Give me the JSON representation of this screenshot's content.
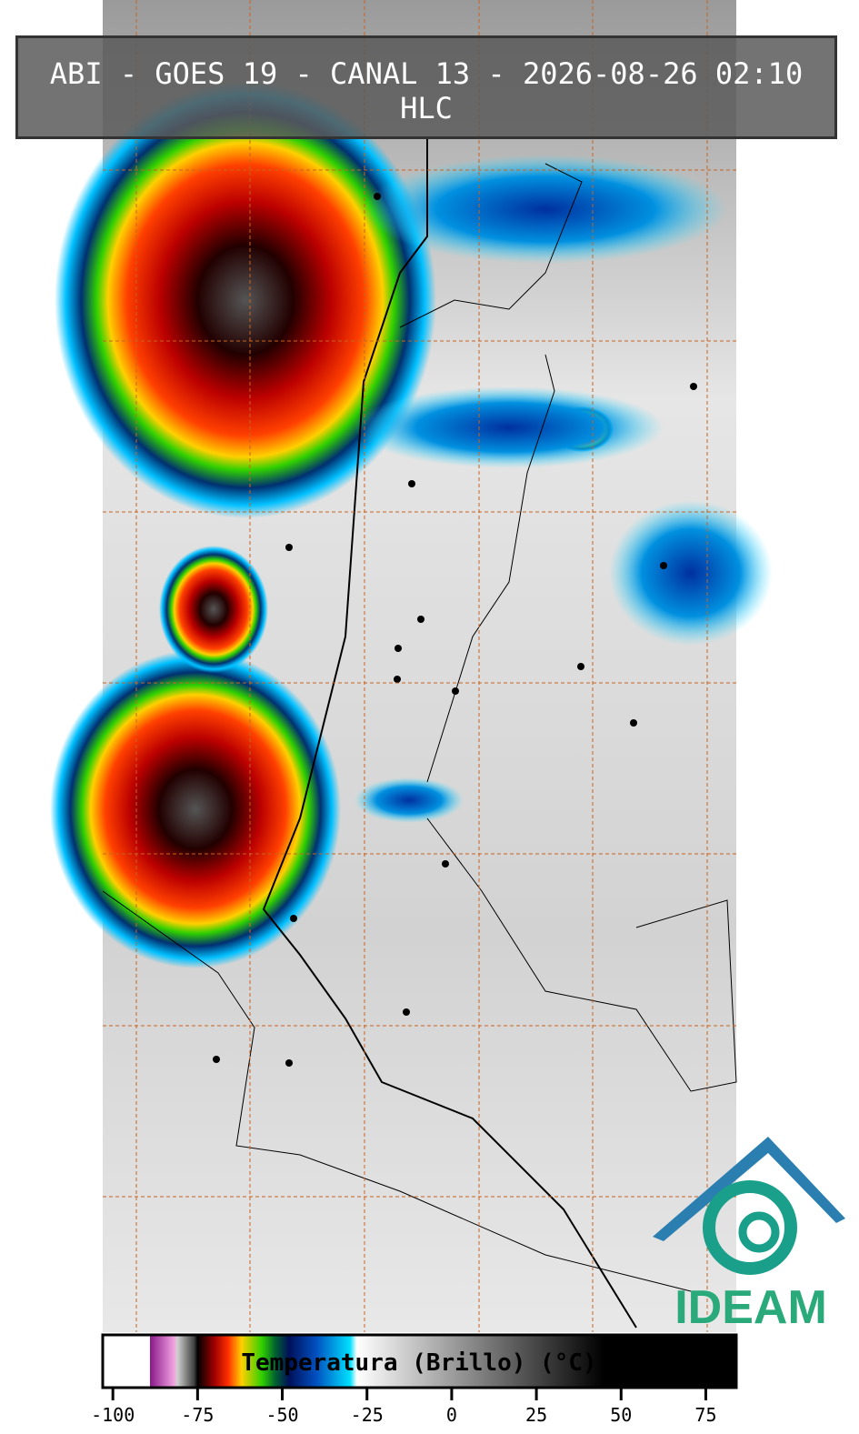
{
  "header": {
    "title": "ABI - GOES 19 - CANAL 13 - 2026-08-26 02:10 HLC"
  },
  "colorbar": {
    "label": "Temperatura (Brillo) (°C)",
    "lim": [
      -103,
      84
    ],
    "ticks": [
      -100,
      -75,
      -50,
      -25,
      0,
      25,
      50,
      75
    ],
    "stops": [
      {
        "value": -103,
        "color": "#ffffff"
      },
      {
        "value": -89,
        "color": "#ffffff"
      },
      {
        "value": -89,
        "color": "#8a1a8a"
      },
      {
        "value": -82,
        "color": "#f0a0e0"
      },
      {
        "value": -81,
        "color": "#d0d0d0"
      },
      {
        "value": -76,
        "color": "#404040"
      },
      {
        "value": -75,
        "color": "#000000"
      },
      {
        "value": -70,
        "color": "#a00000"
      },
      {
        "value": -66,
        "color": "#ff3000"
      },
      {
        "value": -62,
        "color": "#ffd000"
      },
      {
        "value": -56,
        "color": "#30d000"
      },
      {
        "value": -52,
        "color": "#006030"
      },
      {
        "value": -48,
        "color": "#00105a"
      },
      {
        "value": -40,
        "color": "#0050c0"
      },
      {
        "value": -30,
        "color": "#00e0ff"
      },
      {
        "value": -28,
        "color": "#ffffff"
      },
      {
        "value": 45,
        "color": "#000000"
      },
      {
        "value": 84,
        "color": "#000000"
      }
    ]
  },
  "logo": {
    "text": "IDEAM"
  }
}
